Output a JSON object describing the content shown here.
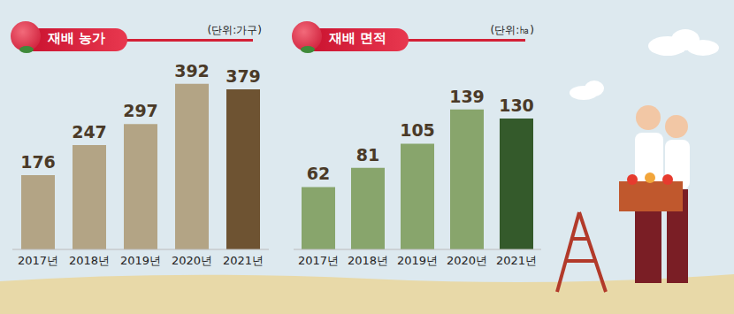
{
  "chart_data": [
    {
      "type": "bar",
      "title": "재배 농가",
      "subtitle": "(단위:가구)",
      "categories": [
        "2017년",
        "2018년",
        "2019년",
        "2020년",
        "2021년"
      ],
      "values": [
        176,
        247,
        297,
        392,
        379
      ],
      "colors": [
        "#b3a485",
        "#b3a485",
        "#b3a485",
        "#b3a485",
        "#6e5332"
      ],
      "ylim": [
        0,
        465
      ],
      "data_labels": true,
      "tick_labels": "x",
      "grid": false
    },
    {
      "type": "bar",
      "title": "재배 면적",
      "subtitle": "(단위:㏊)",
      "categories": [
        "2017년",
        "2018년",
        "2019년",
        "2020년",
        "2021년"
      ],
      "values": [
        62,
        81,
        105,
        139,
        130
      ],
      "colors": [
        "#88a56c",
        "#88a56c",
        "#88a56c",
        "#88a56c",
        "#345a2b"
      ],
      "ylim": [
        0,
        195
      ],
      "data_labels": true,
      "tick_labels": "x",
      "grid": false
    }
  ]
}
